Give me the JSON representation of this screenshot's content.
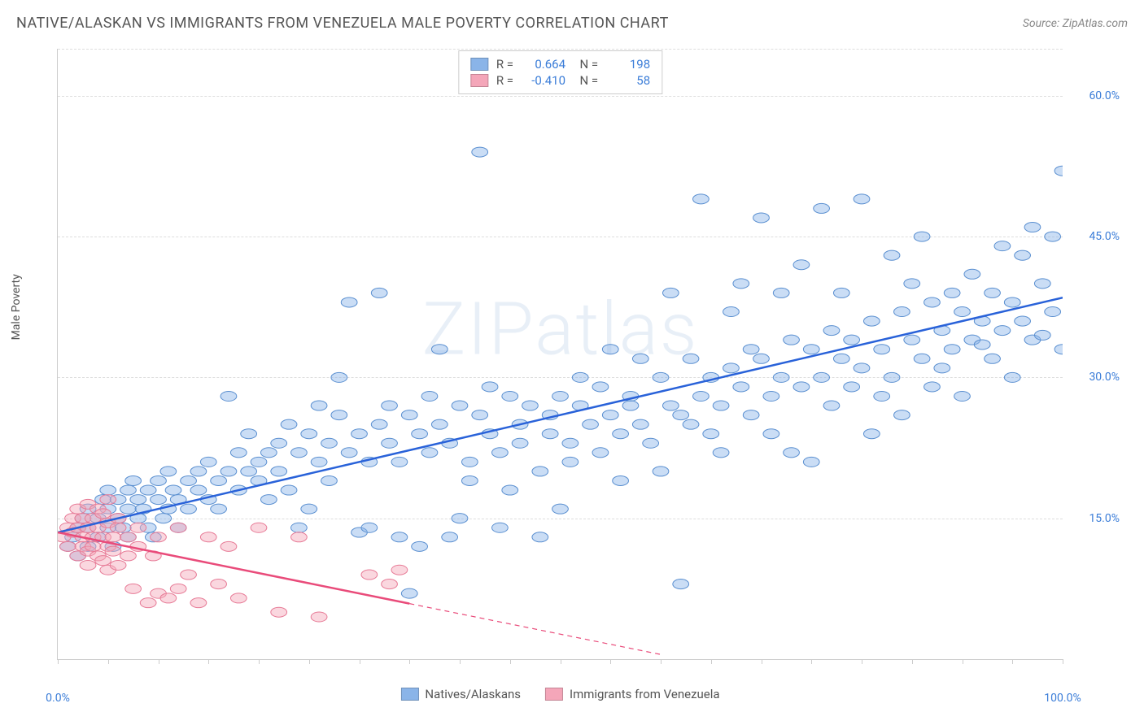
{
  "title": "NATIVE/ALASKAN VS IMMIGRANTS FROM VENEZUELA MALE POVERTY CORRELATION CHART",
  "source": "Source: ZipAtlas.com",
  "watermark": "ZIPatlas",
  "y_axis_label": "Male Poverty",
  "chart": {
    "type": "scatter",
    "background_color": "#ffffff",
    "grid_color": "#dddddd",
    "axis_color": "#cccccc",
    "tick_label_color": "#3b7dd8",
    "tick_label_fontsize": 14,
    "xlim": [
      0,
      100
    ],
    "ylim": [
      0,
      65
    ],
    "x_ticks": [
      0,
      5,
      10,
      15,
      20,
      25,
      30,
      35,
      40,
      45,
      50,
      55,
      60,
      65,
      70,
      75,
      80,
      85,
      90,
      95,
      100
    ],
    "x_tick_labels": [
      {
        "pos": 0,
        "label": "0.0%"
      },
      {
        "pos": 100,
        "label": "100.0%"
      }
    ],
    "y_ticks": [
      {
        "pos": 15,
        "label": "15.0%"
      },
      {
        "pos": 30,
        "label": "30.0%"
      },
      {
        "pos": 45,
        "label": "45.0%"
      },
      {
        "pos": 60,
        "label": "60.0%"
      }
    ],
    "marker_radius": 8,
    "marker_opacity": 0.45,
    "series": [
      {
        "name": "Natives/Alaskans",
        "color": "#8ab4e8",
        "stroke": "#5a8fd0",
        "R": "0.664",
        "N": "198",
        "trend": {
          "x1": 0,
          "y1": 13.5,
          "x2": 100,
          "y2": 38.5,
          "solid_end_x": 100,
          "color": "#2962d9",
          "width": 2.5
        },
        "points": [
          [
            1,
            12
          ],
          [
            1.5,
            13
          ],
          [
            2,
            14
          ],
          [
            2,
            11
          ],
          [
            2.5,
            15
          ],
          [
            3,
            12
          ],
          [
            3,
            14
          ],
          [
            3,
            16
          ],
          [
            4,
            15
          ],
          [
            4,
            13
          ],
          [
            4.5,
            17
          ],
          [
            5,
            14
          ],
          [
            5,
            16
          ],
          [
            5,
            18
          ],
          [
            5.5,
            12
          ],
          [
            6,
            17
          ],
          [
            6,
            15
          ],
          [
            6.5,
            14
          ],
          [
            7,
            18
          ],
          [
            7,
            16
          ],
          [
            7,
            13
          ],
          [
            7.5,
            19
          ],
          [
            8,
            17
          ],
          [
            8,
            15
          ],
          [
            8.5,
            16
          ],
          [
            9,
            18
          ],
          [
            9,
            14
          ],
          [
            9.5,
            13
          ],
          [
            10,
            19
          ],
          [
            10,
            17
          ],
          [
            10.5,
            15
          ],
          [
            11,
            20
          ],
          [
            11,
            16
          ],
          [
            11.5,
            18
          ],
          [
            12,
            14
          ],
          [
            12,
            17
          ],
          [
            13,
            19
          ],
          [
            13,
            16
          ],
          [
            14,
            20
          ],
          [
            14,
            18
          ],
          [
            15,
            17
          ],
          [
            15,
            21
          ],
          [
            16,
            19
          ],
          [
            16,
            16
          ],
          [
            17,
            20
          ],
          [
            17,
            28
          ],
          [
            18,
            18
          ],
          [
            18,
            22
          ],
          [
            19,
            20
          ],
          [
            19,
            24
          ],
          [
            20,
            21
          ],
          [
            20,
            19
          ],
          [
            21,
            22
          ],
          [
            21,
            17
          ],
          [
            22,
            23
          ],
          [
            22,
            20
          ],
          [
            23,
            25
          ],
          [
            23,
            18
          ],
          [
            24,
            22
          ],
          [
            24,
            14
          ],
          [
            25,
            24
          ],
          [
            25,
            16
          ],
          [
            26,
            21
          ],
          [
            26,
            27
          ],
          [
            27,
            23
          ],
          [
            27,
            19
          ],
          [
            28,
            26
          ],
          [
            28,
            30
          ],
          [
            29,
            22
          ],
          [
            29,
            38
          ],
          [
            30,
            24
          ],
          [
            30,
            13.5
          ],
          [
            31,
            21
          ],
          [
            31,
            14
          ],
          [
            32,
            25
          ],
          [
            32,
            39
          ],
          [
            33,
            23
          ],
          [
            33,
            27
          ],
          [
            34,
            21
          ],
          [
            34,
            13
          ],
          [
            35,
            26
          ],
          [
            35,
            7
          ],
          [
            36,
            24
          ],
          [
            36,
            12
          ],
          [
            37,
            22
          ],
          [
            37,
            28
          ],
          [
            38,
            25
          ],
          [
            38,
            33
          ],
          [
            39,
            23
          ],
          [
            39,
            13
          ],
          [
            40,
            27
          ],
          [
            40,
            15
          ],
          [
            41,
            21
          ],
          [
            41,
            19
          ],
          [
            42,
            26
          ],
          [
            42,
            54
          ],
          [
            43,
            24
          ],
          [
            43,
            29
          ],
          [
            44,
            22
          ],
          [
            44,
            14
          ],
          [
            45,
            28
          ],
          [
            45,
            18
          ],
          [
            46,
            25
          ],
          [
            46,
            23
          ],
          [
            47,
            27
          ],
          [
            48,
            20
          ],
          [
            48,
            13
          ],
          [
            49,
            26
          ],
          [
            49,
            24
          ],
          [
            50,
            28
          ],
          [
            50,
            16
          ],
          [
            51,
            23
          ],
          [
            51,
            21
          ],
          [
            52,
            27
          ],
          [
            52,
            30
          ],
          [
            53,
            25
          ],
          [
            54,
            29
          ],
          [
            54,
            22
          ],
          [
            55,
            26
          ],
          [
            55,
            33
          ],
          [
            56,
            24
          ],
          [
            56,
            19
          ],
          [
            57,
            28
          ],
          [
            57,
            27
          ],
          [
            58,
            25
          ],
          [
            58,
            32
          ],
          [
            59,
            23
          ],
          [
            60,
            30
          ],
          [
            60,
            20
          ],
          [
            61,
            27
          ],
          [
            61,
            39
          ],
          [
            62,
            26
          ],
          [
            62,
            8
          ],
          [
            63,
            32
          ],
          [
            63,
            25
          ],
          [
            64,
            28
          ],
          [
            64,
            49
          ],
          [
            65,
            24
          ],
          [
            65,
            30
          ],
          [
            66,
            27
          ],
          [
            66,
            22
          ],
          [
            67,
            31
          ],
          [
            67,
            37
          ],
          [
            68,
            29
          ],
          [
            68,
            40
          ],
          [
            69,
            26
          ],
          [
            69,
            33
          ],
          [
            70,
            32
          ],
          [
            70,
            47
          ],
          [
            71,
            28
          ],
          [
            71,
            24
          ],
          [
            72,
            30
          ],
          [
            72,
            39
          ],
          [
            73,
            34
          ],
          [
            73,
            22
          ],
          [
            74,
            29
          ],
          [
            74,
            42
          ],
          [
            75,
            33
          ],
          [
            75,
            21
          ],
          [
            76,
            30
          ],
          [
            76,
            48
          ],
          [
            77,
            35
          ],
          [
            77,
            27
          ],
          [
            78,
            32
          ],
          [
            78,
            39
          ],
          [
            79,
            29
          ],
          [
            79,
            34
          ],
          [
            80,
            31
          ],
          [
            80,
            49
          ],
          [
            81,
            36
          ],
          [
            81,
            24
          ],
          [
            82,
            33
          ],
          [
            82,
            28
          ],
          [
            83,
            30
          ],
          [
            83,
            43
          ],
          [
            84,
            37
          ],
          [
            84,
            26
          ],
          [
            85,
            34
          ],
          [
            85,
            40
          ],
          [
            86,
            32
          ],
          [
            86,
            45
          ],
          [
            87,
            38
          ],
          [
            87,
            29
          ],
          [
            88,
            35
          ],
          [
            88,
            31
          ],
          [
            89,
            33
          ],
          [
            89,
            39
          ],
          [
            90,
            37
          ],
          [
            90,
            28
          ],
          [
            91,
            34
          ],
          [
            91,
            41
          ],
          [
            92,
            36
          ],
          [
            92,
            33.5
          ],
          [
            93,
            39
          ],
          [
            93,
            32
          ],
          [
            94,
            35
          ],
          [
            94,
            44
          ],
          [
            95,
            38
          ],
          [
            95,
            30
          ],
          [
            96,
            36
          ],
          [
            96,
            43
          ],
          [
            97,
            34
          ],
          [
            97,
            46
          ],
          [
            98,
            40
          ],
          [
            98,
            34.5
          ],
          [
            99,
            37
          ],
          [
            99,
            45
          ],
          [
            100,
            52
          ],
          [
            100,
            33
          ]
        ]
      },
      {
        "name": "Immigrants from Venezuela",
        "color": "#f4a6b9",
        "stroke": "#e77a96",
        "R": "-0.410",
        "N": "58",
        "trend": {
          "x1": 0,
          "y1": 13.5,
          "x2": 60,
          "y2": 0.5,
          "solid_end_x": 35,
          "color": "#e94b7a",
          "width": 2.5
        },
        "points": [
          [
            0.5,
            13
          ],
          [
            1,
            14
          ],
          [
            1,
            12
          ],
          [
            1.5,
            15
          ],
          [
            1.5,
            13.5
          ],
          [
            2,
            11
          ],
          [
            2,
            14
          ],
          [
            2,
            16
          ],
          [
            2.5,
            12
          ],
          [
            2.5,
            13
          ],
          [
            2.5,
            15
          ],
          [
            3,
            14
          ],
          [
            3,
            11.5
          ],
          [
            3,
            16.5
          ],
          [
            3,
            10
          ],
          [
            3.5,
            13
          ],
          [
            3.5,
            12
          ],
          [
            3.5,
            15
          ],
          [
            4,
            14
          ],
          [
            4,
            11
          ],
          [
            4,
            16
          ],
          [
            4.5,
            13
          ],
          [
            4.5,
            10.5
          ],
          [
            4.5,
            15.5
          ],
          [
            5,
            12
          ],
          [
            5,
            14.5
          ],
          [
            5,
            17
          ],
          [
            5,
            9.5
          ],
          [
            5.5,
            13
          ],
          [
            5.5,
            11.5
          ],
          [
            6,
            14
          ],
          [
            6,
            10
          ],
          [
            6,
            15
          ],
          [
            7,
            13
          ],
          [
            7,
            11
          ],
          [
            7.5,
            7.5
          ],
          [
            8,
            12
          ],
          [
            8,
            14
          ],
          [
            9,
            6
          ],
          [
            9.5,
            11
          ],
          [
            10,
            7
          ],
          [
            10,
            13
          ],
          [
            11,
            6.5
          ],
          [
            12,
            14
          ],
          [
            12,
            7.5
          ],
          [
            13,
            9
          ],
          [
            14,
            6
          ],
          [
            15,
            13
          ],
          [
            16,
            8
          ],
          [
            17,
            12
          ],
          [
            18,
            6.5
          ],
          [
            20,
            14
          ],
          [
            22,
            5
          ],
          [
            24,
            13
          ],
          [
            26,
            4.5
          ],
          [
            31,
            9
          ],
          [
            33,
            8
          ],
          [
            34,
            9.5
          ]
        ]
      }
    ]
  },
  "legend": {
    "series1_label": "Natives/Alaskans",
    "series2_label": "Immigrants from Venezuela"
  }
}
